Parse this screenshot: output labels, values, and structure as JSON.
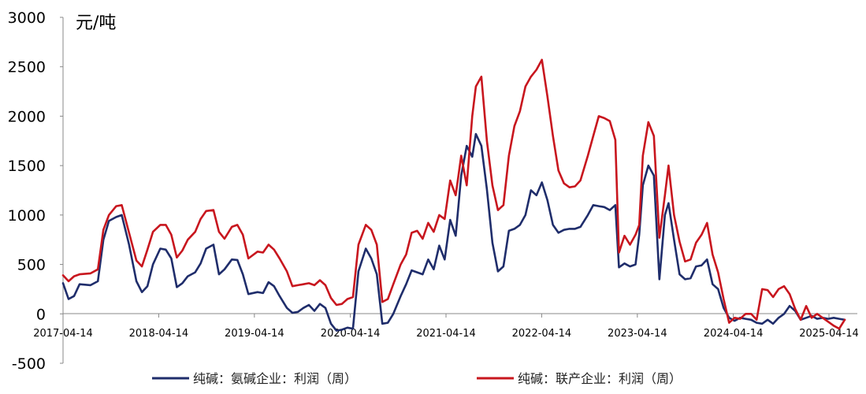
{
  "chart_data": {
    "type": "line",
    "unit_label": "元/吨",
    "ylim": [
      -500,
      3000
    ],
    "y_ticks": [
      "3000",
      "2500",
      "2000",
      "1500",
      "1000",
      "500",
      "0",
      "-500"
    ],
    "x_ticks": [
      "2017-04-14",
      "2018-04-14",
      "2019-04-14",
      "2020-04-14",
      "2021-04-14",
      "2022-04-14",
      "2023-04-14",
      "2024-04-14",
      "2025-04-14"
    ],
    "grid": false,
    "legend_position": "bottom",
    "series": [
      {
        "name": "纯碱：氨碱企业：利润（周）",
        "color": "#1f2d6b",
        "points": [
          [
            "2017-04-14",
            310
          ],
          [
            "2017-05-05",
            150
          ],
          [
            "2017-05-26",
            180
          ],
          [
            "2017-06-16",
            300
          ],
          [
            "2017-07-28",
            290
          ],
          [
            "2017-08-25",
            330
          ],
          [
            "2017-09-15",
            750
          ],
          [
            "2017-10-06",
            940
          ],
          [
            "2017-11-03",
            980
          ],
          [
            "2017-11-24",
            1000
          ],
          [
            "2017-12-22",
            700
          ],
          [
            "2018-01-19",
            330
          ],
          [
            "2018-02-09",
            220
          ],
          [
            "2018-03-02",
            280
          ],
          [
            "2018-03-23",
            500
          ],
          [
            "2018-04-20",
            660
          ],
          [
            "2018-05-11",
            650
          ],
          [
            "2018-06-01",
            560
          ],
          [
            "2018-06-22",
            270
          ],
          [
            "2018-07-13",
            310
          ],
          [
            "2018-08-03",
            380
          ],
          [
            "2018-08-31",
            420
          ],
          [
            "2018-09-21",
            510
          ],
          [
            "2018-10-12",
            660
          ],
          [
            "2018-11-09",
            700
          ],
          [
            "2018-11-30",
            400
          ],
          [
            "2018-12-21",
            450
          ],
          [
            "2019-01-18",
            550
          ],
          [
            "2019-02-08",
            545
          ],
          [
            "2019-03-01",
            400
          ],
          [
            "2019-03-22",
            200
          ],
          [
            "2019-04-26",
            220
          ],
          [
            "2019-05-17",
            210
          ],
          [
            "2019-06-07",
            320
          ],
          [
            "2019-06-28",
            280
          ],
          [
            "2019-07-19",
            180
          ],
          [
            "2019-08-16",
            60
          ],
          [
            "2019-09-06",
            10
          ],
          [
            "2019-09-27",
            20
          ],
          [
            "2019-10-18",
            60
          ],
          [
            "2019-11-08",
            90
          ],
          [
            "2019-11-29",
            30
          ],
          [
            "2019-12-20",
            100
          ],
          [
            "2020-01-10",
            60
          ],
          [
            "2020-01-31",
            -100
          ],
          [
            "2020-02-21",
            -170
          ],
          [
            "2020-03-13",
            -160
          ],
          [
            "2020-04-03",
            -140
          ],
          [
            "2020-04-24",
            -150
          ],
          [
            "2020-05-15",
            430
          ],
          [
            "2020-06-12",
            660
          ],
          [
            "2020-07-03",
            560
          ],
          [
            "2020-07-24",
            400
          ],
          [
            "2020-08-14",
            -100
          ],
          [
            "2020-09-04",
            -90
          ],
          [
            "2020-09-25",
            0
          ],
          [
            "2020-10-23",
            180
          ],
          [
            "2020-11-13",
            300
          ],
          [
            "2020-12-04",
            440
          ],
          [
            "2020-12-25",
            420
          ],
          [
            "2021-01-15",
            400
          ],
          [
            "2021-02-05",
            550
          ],
          [
            "2021-02-26",
            450
          ],
          [
            "2021-03-19",
            690
          ],
          [
            "2021-04-09",
            550
          ],
          [
            "2021-04-30",
            950
          ],
          [
            "2021-05-21",
            790
          ],
          [
            "2021-06-11",
            1400
          ],
          [
            "2021-07-02",
            1700
          ],
          [
            "2021-07-23",
            1590
          ],
          [
            "2021-08-06",
            1820
          ],
          [
            "2021-08-27",
            1700
          ],
          [
            "2021-09-17",
            1260
          ],
          [
            "2021-10-08",
            720
          ],
          [
            "2021-10-29",
            430
          ],
          [
            "2021-11-19",
            480
          ],
          [
            "2021-12-10",
            840
          ],
          [
            "2021-12-31",
            860
          ],
          [
            "2022-01-21",
            900
          ],
          [
            "2022-02-11",
            1000
          ],
          [
            "2022-03-04",
            1250
          ],
          [
            "2022-03-25",
            1200
          ],
          [
            "2022-04-15",
            1330
          ],
          [
            "2022-05-06",
            1150
          ],
          [
            "2022-05-27",
            900
          ],
          [
            "2022-06-17",
            820
          ],
          [
            "2022-07-08",
            850
          ],
          [
            "2022-07-29",
            860
          ],
          [
            "2022-08-19",
            860
          ],
          [
            "2022-09-09",
            880
          ],
          [
            "2022-10-07",
            1000
          ],
          [
            "2022-10-28",
            1100
          ],
          [
            "2022-11-18",
            1090
          ],
          [
            "2022-12-09",
            1080
          ],
          [
            "2022-12-30",
            1050
          ],
          [
            "2023-01-20",
            1100
          ],
          [
            "2023-02-03",
            470
          ],
          [
            "2023-02-24",
            510
          ],
          [
            "2023-03-17",
            480
          ],
          [
            "2023-04-07",
            500
          ],
          [
            "2023-04-21",
            800
          ],
          [
            "2023-05-05",
            1300
          ],
          [
            "2023-05-26",
            1500
          ],
          [
            "2023-06-16",
            1400
          ],
          [
            "2023-07-07",
            350
          ],
          [
            "2023-07-28",
            1000
          ],
          [
            "2023-08-11",
            1120
          ],
          [
            "2023-09-01",
            750
          ],
          [
            "2023-09-22",
            400
          ],
          [
            "2023-10-13",
            350
          ],
          [
            "2023-11-03",
            360
          ],
          [
            "2023-11-24",
            480
          ],
          [
            "2023-12-15",
            490
          ],
          [
            "2024-01-05",
            550
          ],
          [
            "2024-01-26",
            300
          ],
          [
            "2024-02-16",
            250
          ],
          [
            "2024-03-08",
            60
          ],
          [
            "2024-03-29",
            -40
          ],
          [
            "2024-04-19",
            -70
          ],
          [
            "2024-05-10",
            -40
          ],
          [
            "2024-05-31",
            -50
          ],
          [
            "2024-06-21",
            -60
          ],
          [
            "2024-07-12",
            -90
          ],
          [
            "2024-08-02",
            -100
          ],
          [
            "2024-08-23",
            -60
          ],
          [
            "2024-09-13",
            -100
          ],
          [
            "2024-10-04",
            -40
          ],
          [
            "2024-10-25",
            0
          ],
          [
            "2024-11-15",
            80
          ],
          [
            "2024-12-06",
            30
          ],
          [
            "2024-12-27",
            -60
          ],
          [
            "2025-01-17",
            -40
          ],
          [
            "2025-02-07",
            -20
          ],
          [
            "2025-02-28",
            -50
          ],
          [
            "2025-03-21",
            -40
          ],
          [
            "2025-04-11",
            -50
          ],
          [
            "2025-05-02",
            -40
          ],
          [
            "2025-05-23",
            -50
          ],
          [
            "2025-06-13",
            -60
          ]
        ]
      },
      {
        "name": "纯碱：联产企业：利润（周）",
        "color": "#c8161e",
        "points": [
          [
            "2017-04-14",
            390
          ],
          [
            "2017-05-05",
            330
          ],
          [
            "2017-05-26",
            380
          ],
          [
            "2017-06-16",
            400
          ],
          [
            "2017-07-28",
            410
          ],
          [
            "2017-08-25",
            450
          ],
          [
            "2017-09-15",
            850
          ],
          [
            "2017-10-06",
            1000
          ],
          [
            "2017-11-03",
            1090
          ],
          [
            "2017-11-24",
            1100
          ],
          [
            "2017-12-22",
            820
          ],
          [
            "2018-01-19",
            540
          ],
          [
            "2018-02-09",
            480
          ],
          [
            "2018-03-02",
            650
          ],
          [
            "2018-03-23",
            830
          ],
          [
            "2018-04-20",
            900
          ],
          [
            "2018-05-11",
            900
          ],
          [
            "2018-06-01",
            800
          ],
          [
            "2018-06-22",
            570
          ],
          [
            "2018-07-13",
            640
          ],
          [
            "2018-08-03",
            750
          ],
          [
            "2018-08-31",
            830
          ],
          [
            "2018-09-21",
            960
          ],
          [
            "2018-10-12",
            1040
          ],
          [
            "2018-11-09",
            1050
          ],
          [
            "2018-11-30",
            830
          ],
          [
            "2018-12-21",
            760
          ],
          [
            "2019-01-18",
            880
          ],
          [
            "2019-02-08",
            900
          ],
          [
            "2019-03-01",
            800
          ],
          [
            "2019-03-22",
            560
          ],
          [
            "2019-04-26",
            630
          ],
          [
            "2019-05-17",
            620
          ],
          [
            "2019-06-07",
            700
          ],
          [
            "2019-06-28",
            650
          ],
          [
            "2019-07-19",
            560
          ],
          [
            "2019-08-16",
            430
          ],
          [
            "2019-09-06",
            280
          ],
          [
            "2019-09-27",
            290
          ],
          [
            "2019-10-18",
            300
          ],
          [
            "2019-11-08",
            310
          ],
          [
            "2019-11-29",
            290
          ],
          [
            "2019-12-20",
            340
          ],
          [
            "2020-01-10",
            290
          ],
          [
            "2020-01-31",
            160
          ],
          [
            "2020-02-21",
            90
          ],
          [
            "2020-03-13",
            100
          ],
          [
            "2020-04-03",
            150
          ],
          [
            "2020-04-24",
            170
          ],
          [
            "2020-05-15",
            700
          ],
          [
            "2020-06-12",
            900
          ],
          [
            "2020-07-03",
            850
          ],
          [
            "2020-07-24",
            700
          ],
          [
            "2020-08-14",
            120
          ],
          [
            "2020-09-04",
            150
          ],
          [
            "2020-09-25",
            300
          ],
          [
            "2020-10-23",
            500
          ],
          [
            "2020-11-13",
            600
          ],
          [
            "2020-12-04",
            820
          ],
          [
            "2020-12-25",
            840
          ],
          [
            "2021-01-15",
            760
          ],
          [
            "2021-02-05",
            920
          ],
          [
            "2021-02-26",
            830
          ],
          [
            "2021-03-19",
            1000
          ],
          [
            "2021-04-09",
            960
          ],
          [
            "2021-04-30",
            1350
          ],
          [
            "2021-05-21",
            1200
          ],
          [
            "2021-06-11",
            1600
          ],
          [
            "2021-07-02",
            1300
          ],
          [
            "2021-07-23",
            2000
          ],
          [
            "2021-08-06",
            2300
          ],
          [
            "2021-08-27",
            2400
          ],
          [
            "2021-09-17",
            1750
          ],
          [
            "2021-10-08",
            1300
          ],
          [
            "2021-10-29",
            1050
          ],
          [
            "2021-11-19",
            1100
          ],
          [
            "2021-12-10",
            1600
          ],
          [
            "2021-12-31",
            1900
          ],
          [
            "2022-01-21",
            2050
          ],
          [
            "2022-02-11",
            2300
          ],
          [
            "2022-03-04",
            2400
          ],
          [
            "2022-03-25",
            2470
          ],
          [
            "2022-04-15",
            2570
          ],
          [
            "2022-05-06",
            2200
          ],
          [
            "2022-05-27",
            1800
          ],
          [
            "2022-06-17",
            1450
          ],
          [
            "2022-07-08",
            1320
          ],
          [
            "2022-07-29",
            1280
          ],
          [
            "2022-08-19",
            1290
          ],
          [
            "2022-09-09",
            1350
          ],
          [
            "2022-10-07",
            1600
          ],
          [
            "2022-10-28",
            1800
          ],
          [
            "2022-11-18",
            2000
          ],
          [
            "2022-12-09",
            1980
          ],
          [
            "2022-12-30",
            1950
          ],
          [
            "2023-01-20",
            1760
          ],
          [
            "2023-02-03",
            620
          ],
          [
            "2023-02-24",
            790
          ],
          [
            "2023-03-17",
            700
          ],
          [
            "2023-04-07",
            800
          ],
          [
            "2023-04-21",
            900
          ],
          [
            "2023-05-05",
            1600
          ],
          [
            "2023-05-26",
            1940
          ],
          [
            "2023-06-16",
            1800
          ],
          [
            "2023-07-07",
            770
          ],
          [
            "2023-07-28",
            1200
          ],
          [
            "2023-08-11",
            1500
          ],
          [
            "2023-09-01",
            1000
          ],
          [
            "2023-09-22",
            730
          ],
          [
            "2023-10-13",
            530
          ],
          [
            "2023-11-03",
            550
          ],
          [
            "2023-11-24",
            720
          ],
          [
            "2023-12-15",
            800
          ],
          [
            "2024-01-05",
            920
          ],
          [
            "2024-01-26",
            600
          ],
          [
            "2024-02-16",
            420
          ],
          [
            "2024-03-08",
            150
          ],
          [
            "2024-03-29",
            -90
          ],
          [
            "2024-04-19",
            -40
          ],
          [
            "2024-05-10",
            -50
          ],
          [
            "2024-05-31",
            0
          ],
          [
            "2024-06-21",
            0
          ],
          [
            "2024-07-12",
            -60
          ],
          [
            "2024-08-02",
            250
          ],
          [
            "2024-08-23",
            240
          ],
          [
            "2024-09-13",
            170
          ],
          [
            "2024-10-04",
            250
          ],
          [
            "2024-10-25",
            280
          ],
          [
            "2024-11-15",
            200
          ],
          [
            "2024-12-06",
            50
          ],
          [
            "2024-12-27",
            -60
          ],
          [
            "2025-01-17",
            80
          ],
          [
            "2025-02-07",
            -40
          ],
          [
            "2025-02-28",
            0
          ],
          [
            "2025-03-21",
            -40
          ],
          [
            "2025-04-11",
            -80
          ],
          [
            "2025-05-02",
            -120
          ],
          [
            "2025-05-23",
            -150
          ],
          [
            "2025-06-13",
            -60
          ]
        ]
      }
    ]
  }
}
